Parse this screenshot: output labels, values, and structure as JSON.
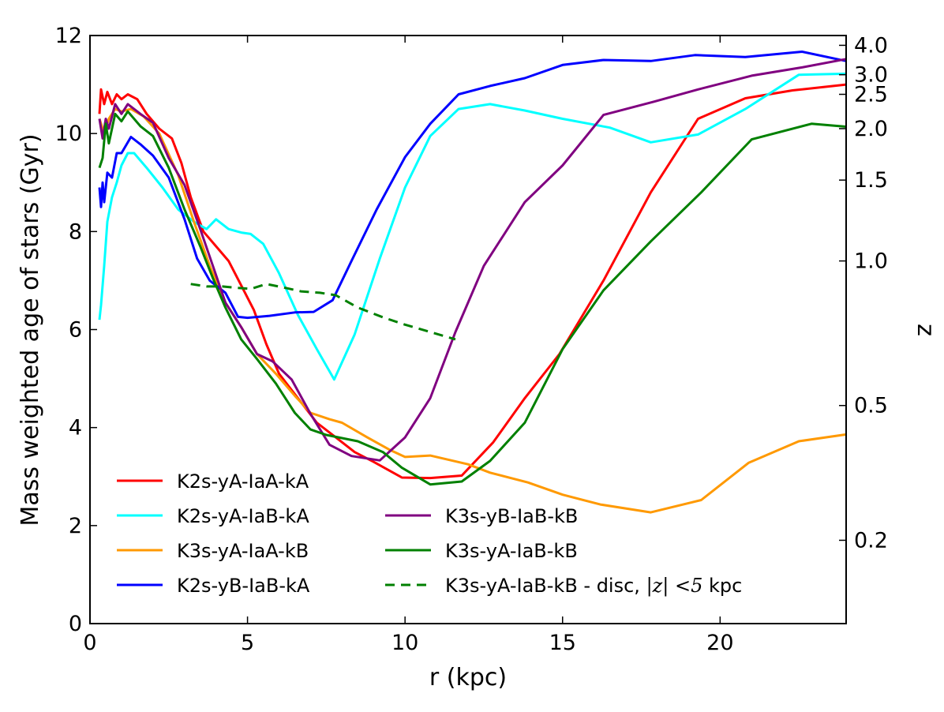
{
  "chart_data": {
    "type": "line",
    "xlabel": "r (kpc)",
    "ylabel": "Mass weighted age of stars (Gyr)",
    "y2label": "z",
    "xlim": [
      0,
      24
    ],
    "ylim": [
      0,
      12
    ],
    "x_ticks": [
      0,
      5,
      10,
      15,
      20
    ],
    "y_ticks": [
      0,
      2,
      4,
      6,
      8,
      10,
      12
    ],
    "y2_ticks": [
      {
        "label": "4.0",
        "age": 11.8
      },
      {
        "label": "3.0",
        "age": 11.2
      },
      {
        "label": "2.5",
        "age": 10.8
      },
      {
        "label": "2.0",
        "age": 10.1
      },
      {
        "label": "1.5",
        "age": 9.05
      },
      {
        "label": "1.0",
        "age": 7.4
      },
      {
        "label": "0.5",
        "age": 4.45
      },
      {
        "label": "0.2",
        "age": 1.7
      }
    ],
    "legend_position": "lower-left",
    "series": [
      {
        "name": "K2s-yA-IaA-kA",
        "color": "#ff0000",
        "dash": false,
        "legend_col": 0,
        "legend_row": 0,
        "points": [
          [
            0.3,
            10.4
          ],
          [
            0.35,
            10.9
          ],
          [
            0.45,
            10.6
          ],
          [
            0.55,
            10.85
          ],
          [
            0.7,
            10.6
          ],
          [
            0.85,
            10.8
          ],
          [
            1.0,
            10.7
          ],
          [
            1.2,
            10.8
          ],
          [
            1.5,
            10.7
          ],
          [
            1.8,
            10.4
          ],
          [
            2.2,
            10.1
          ],
          [
            2.6,
            9.9
          ],
          [
            2.9,
            9.4
          ],
          [
            3.2,
            8.7
          ],
          [
            3.6,
            8.0
          ],
          [
            4.0,
            7.7
          ],
          [
            4.4,
            7.4
          ],
          [
            4.8,
            6.9
          ],
          [
            5.2,
            6.4
          ],
          [
            5.6,
            5.7
          ],
          [
            6.0,
            5.1
          ],
          [
            6.6,
            4.6
          ],
          [
            7.2,
            4.1
          ],
          [
            7.8,
            3.8
          ],
          [
            8.4,
            3.5
          ],
          [
            9.0,
            3.3
          ],
          [
            9.9,
            2.98
          ],
          [
            10.8,
            2.97
          ],
          [
            11.8,
            3.02
          ],
          [
            12.8,
            3.7
          ],
          [
            13.8,
            4.6
          ],
          [
            14.9,
            5.5
          ],
          [
            16.3,
            7.0
          ],
          [
            17.8,
            8.8
          ],
          [
            19.3,
            10.3
          ],
          [
            20.8,
            10.72
          ],
          [
            22.3,
            10.88
          ],
          [
            24,
            11.0
          ]
        ]
      },
      {
        "name": "K2s-yA-IaB-kA",
        "color": "#00ffff",
        "dash": false,
        "legend_col": 0,
        "legend_row": 1,
        "points": [
          [
            0.3,
            6.2
          ],
          [
            0.35,
            6.5
          ],
          [
            0.45,
            7.3
          ],
          [
            0.55,
            8.2
          ],
          [
            0.7,
            8.7
          ],
          [
            0.85,
            9.0
          ],
          [
            1.0,
            9.35
          ],
          [
            1.2,
            9.6
          ],
          [
            1.4,
            9.6
          ],
          [
            1.8,
            9.3
          ],
          [
            2.3,
            8.9
          ],
          [
            2.8,
            8.45
          ],
          [
            3.3,
            8.2
          ],
          [
            3.7,
            8.05
          ],
          [
            4.0,
            8.25
          ],
          [
            4.4,
            8.05
          ],
          [
            4.8,
            7.98
          ],
          [
            5.1,
            7.95
          ],
          [
            5.5,
            7.75
          ],
          [
            6.0,
            7.15
          ],
          [
            6.6,
            6.3
          ],
          [
            7.2,
            5.6
          ],
          [
            7.75,
            4.98
          ],
          [
            8.4,
            5.9
          ],
          [
            9.2,
            7.45
          ],
          [
            10.0,
            8.9
          ],
          [
            10.8,
            9.95
          ],
          [
            11.7,
            10.5
          ],
          [
            12.7,
            10.6
          ],
          [
            13.8,
            10.47
          ],
          [
            15.0,
            10.3
          ],
          [
            16.5,
            10.12
          ],
          [
            17.8,
            9.82
          ],
          [
            19.3,
            9.98
          ],
          [
            20.8,
            10.5
          ],
          [
            22.5,
            11.2
          ],
          [
            24,
            11.22
          ]
        ]
      },
      {
        "name": "K3s-yA-IaA-kB",
        "color": "#ff9900",
        "dash": false,
        "legend_col": 0,
        "legend_row": 2,
        "points": [
          [
            0.3,
            10.3
          ],
          [
            0.45,
            10.0
          ],
          [
            0.6,
            10.3
          ],
          [
            0.8,
            10.5
          ],
          [
            1.0,
            10.45
          ],
          [
            1.3,
            10.5
          ],
          [
            1.7,
            10.35
          ],
          [
            2.2,
            10.0
          ],
          [
            2.8,
            9.15
          ],
          [
            3.3,
            8.2
          ],
          [
            3.8,
            7.3
          ],
          [
            4.3,
            6.55
          ],
          [
            4.8,
            6.05
          ],
          [
            5.3,
            5.5
          ],
          [
            5.9,
            5.1
          ],
          [
            6.5,
            4.65
          ],
          [
            7.0,
            4.3
          ],
          [
            7.6,
            4.17
          ],
          [
            8.0,
            4.1
          ],
          [
            8.8,
            3.8
          ],
          [
            9.5,
            3.55
          ],
          [
            10.0,
            3.4
          ],
          [
            10.8,
            3.43
          ],
          [
            12.0,
            3.25
          ],
          [
            12.7,
            3.08
          ],
          [
            13.9,
            2.88
          ],
          [
            15.0,
            2.63
          ],
          [
            16.2,
            2.43
          ],
          [
            17.8,
            2.27
          ],
          [
            19.4,
            2.52
          ],
          [
            20.9,
            3.28
          ],
          [
            22.5,
            3.72
          ],
          [
            24,
            3.86
          ]
        ]
      },
      {
        "name": "K2s-yB-IaB-kA",
        "color": "#0000ff",
        "dash": false,
        "legend_col": 0,
        "legend_row": 3,
        "points": [
          [
            0.3,
            8.9
          ],
          [
            0.35,
            8.5
          ],
          [
            0.4,
            9.0
          ],
          [
            0.45,
            8.6
          ],
          [
            0.55,
            9.2
          ],
          [
            0.7,
            9.1
          ],
          [
            0.85,
            9.6
          ],
          [
            1.0,
            9.6
          ],
          [
            1.3,
            9.93
          ],
          [
            1.6,
            9.78
          ],
          [
            2.0,
            9.55
          ],
          [
            2.5,
            9.1
          ],
          [
            3.0,
            8.25
          ],
          [
            3.4,
            7.45
          ],
          [
            3.8,
            7.0
          ],
          [
            4.3,
            6.75
          ],
          [
            4.7,
            6.26
          ],
          [
            5.0,
            6.24
          ],
          [
            5.7,
            6.28
          ],
          [
            6.5,
            6.35
          ],
          [
            7.1,
            6.36
          ],
          [
            7.7,
            6.6
          ],
          [
            8.3,
            7.4
          ],
          [
            9.1,
            8.45
          ],
          [
            10.0,
            9.52
          ],
          [
            10.8,
            10.2
          ],
          [
            11.7,
            10.8
          ],
          [
            12.7,
            10.97
          ],
          [
            13.8,
            11.13
          ],
          [
            15.0,
            11.4
          ],
          [
            16.3,
            11.5
          ],
          [
            17.8,
            11.48
          ],
          [
            19.2,
            11.6
          ],
          [
            20.8,
            11.56
          ],
          [
            22.6,
            11.67
          ],
          [
            24,
            11.48
          ]
        ]
      },
      {
        "name": "K3s-yB-IaB-kB",
        "color": "#800080",
        "dash": false,
        "legend_col": 1,
        "legend_row": 1,
        "points": [
          [
            0.3,
            10.3
          ],
          [
            0.4,
            9.9
          ],
          [
            0.5,
            10.3
          ],
          [
            0.6,
            10.1
          ],
          [
            0.8,
            10.6
          ],
          [
            1.0,
            10.4
          ],
          [
            1.2,
            10.6
          ],
          [
            1.6,
            10.4
          ],
          [
            2.0,
            10.22
          ],
          [
            2.5,
            9.5
          ],
          [
            3.0,
            8.95
          ],
          [
            3.5,
            8.05
          ],
          [
            3.9,
            7.3
          ],
          [
            4.3,
            6.55
          ],
          [
            4.8,
            6.05
          ],
          [
            5.3,
            5.5
          ],
          [
            5.8,
            5.35
          ],
          [
            6.4,
            4.98
          ],
          [
            7.0,
            4.28
          ],
          [
            7.6,
            3.65
          ],
          [
            8.3,
            3.42
          ],
          [
            9.2,
            3.33
          ],
          [
            10.0,
            3.8
          ],
          [
            10.8,
            4.6
          ],
          [
            11.6,
            5.95
          ],
          [
            12.5,
            7.3
          ],
          [
            13.8,
            8.6
          ],
          [
            15.0,
            9.35
          ],
          [
            16.3,
            10.38
          ],
          [
            17.9,
            10.65
          ],
          [
            19.3,
            10.9
          ],
          [
            21.0,
            11.18
          ],
          [
            22.6,
            11.35
          ],
          [
            24,
            11.52
          ]
        ]
      },
      {
        "name": "K3s-yA-IaB-kB",
        "color": "#008000",
        "dash": false,
        "legend_col": 1,
        "legend_row": 2,
        "points": [
          [
            0.3,
            9.3
          ],
          [
            0.4,
            9.5
          ],
          [
            0.5,
            10.2
          ],
          [
            0.6,
            9.8
          ],
          [
            0.8,
            10.4
          ],
          [
            1.0,
            10.25
          ],
          [
            1.2,
            10.45
          ],
          [
            1.6,
            10.15
          ],
          [
            2.0,
            9.95
          ],
          [
            2.5,
            9.3
          ],
          [
            3.0,
            8.45
          ],
          [
            3.5,
            7.7
          ],
          [
            3.9,
            7.05
          ],
          [
            4.3,
            6.45
          ],
          [
            4.8,
            5.8
          ],
          [
            5.3,
            5.4
          ],
          [
            5.9,
            4.9
          ],
          [
            6.5,
            4.3
          ],
          [
            7.0,
            3.96
          ],
          [
            7.5,
            3.85
          ],
          [
            8.5,
            3.72
          ],
          [
            9.3,
            3.5
          ],
          [
            9.9,
            3.18
          ],
          [
            10.8,
            2.84
          ],
          [
            11.8,
            2.9
          ],
          [
            12.7,
            3.32
          ],
          [
            13.8,
            4.1
          ],
          [
            15.0,
            5.6
          ],
          [
            16.3,
            6.8
          ],
          [
            17.8,
            7.8
          ],
          [
            19.4,
            8.8
          ],
          [
            21.0,
            9.88
          ],
          [
            22.9,
            10.2
          ],
          [
            24,
            10.14
          ]
        ]
      },
      {
        "name": "K3s-yA-IaB-kB - disc, |z| <5 kpc",
        "name_prefix": "K3s-yA-IaB-kB - disc,",
        "name_math": "|z|",
        "name_rel": "<5",
        "name_suffix": "kpc",
        "color": "#008000",
        "dash": true,
        "legend_col": 1,
        "legend_row": 3,
        "points": [
          [
            3.2,
            6.93
          ],
          [
            3.7,
            6.88
          ],
          [
            4.2,
            6.88
          ],
          [
            4.7,
            6.85
          ],
          [
            5.1,
            6.83
          ],
          [
            5.6,
            6.93
          ],
          [
            6.2,
            6.85
          ],
          [
            6.7,
            6.78
          ],
          [
            7.3,
            6.75
          ],
          [
            7.8,
            6.7
          ],
          [
            8.5,
            6.45
          ],
          [
            9.3,
            6.25
          ],
          [
            10.0,
            6.1
          ],
          [
            10.8,
            5.95
          ],
          [
            11.6,
            5.8
          ]
        ]
      }
    ]
  }
}
